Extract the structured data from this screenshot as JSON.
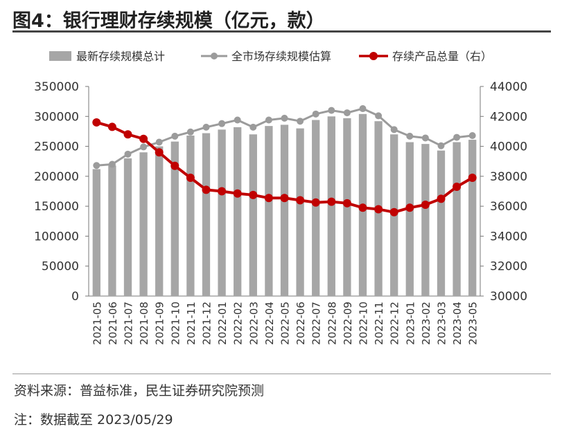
{
  "title": "图4：银行理财存续规模（亿元，款）",
  "source": "资料来源：普益标准，民生证券研究院预测",
  "note": "注：数据截至 2023/05/29",
  "chart_data": {
    "type": "bar",
    "categories": [
      "2021-05",
      "2021-06",
      "2021-07",
      "2021-08",
      "2021-09",
      "2021-10",
      "2021-11",
      "2021-12",
      "2022-01",
      "2022-02",
      "2022-03",
      "2022-04",
      "2022-05",
      "2022-06",
      "2022-07",
      "2022-08",
      "2022-09",
      "2022-10",
      "2022-11",
      "2022-12",
      "2023-01",
      "2023-02",
      "2023-03",
      "2023-04",
      "2023-05"
    ],
    "left_axis": {
      "ylim": [
        0,
        350000
      ],
      "ticks": [
        0,
        50000,
        100000,
        150000,
        200000,
        250000,
        300000,
        350000
      ],
      "tick_labels": [
        "0",
        "50000",
        "100000",
        "150000",
        "200000",
        "250000",
        "300000",
        "350000"
      ]
    },
    "right_axis": {
      "ylim": [
        30000,
        44000
      ],
      "ticks": [
        30000,
        32000,
        34000,
        36000,
        38000,
        40000,
        42000,
        44000
      ],
      "tick_labels": [
        "30000",
        "32000",
        "34000",
        "36000",
        "38000",
        "40000",
        "42000",
        "44000"
      ]
    },
    "series": [
      {
        "name": "最新存续规模总计",
        "type": "bar",
        "axis": "left",
        "color": "#a6a6a6",
        "values": [
          212000,
          218000,
          230000,
          240000,
          250000,
          258000,
          268000,
          272000,
          278000,
          282000,
          270000,
          284000,
          286000,
          280000,
          294000,
          300000,
          297000,
          304000,
          292000,
          270000,
          257000,
          254000,
          243000,
          257000,
          261000
        ]
      },
      {
        "name": "全市场存续规模估算",
        "type": "line",
        "axis": "left",
        "color": "#9b9b9b",
        "values": [
          218000,
          220000,
          237000,
          249000,
          257000,
          267000,
          274000,
          282000,
          288000,
          294000,
          282000,
          294000,
          297000,
          292000,
          304000,
          310000,
          306000,
          313000,
          301000,
          278000,
          267000,
          264000,
          251000,
          265000,
          268000
        ]
      },
      {
        "name": "存续产品总量（右）",
        "type": "line",
        "axis": "right",
        "color": "#c00000",
        "values": [
          41600,
          41300,
          40800,
          40500,
          39600,
          38700,
          37900,
          37100,
          37000,
          36850,
          36750,
          36550,
          36550,
          36400,
          36250,
          36300,
          36200,
          35900,
          35800,
          35600,
          35900,
          36100,
          36500,
          37300,
          37900
        ]
      }
    ]
  }
}
